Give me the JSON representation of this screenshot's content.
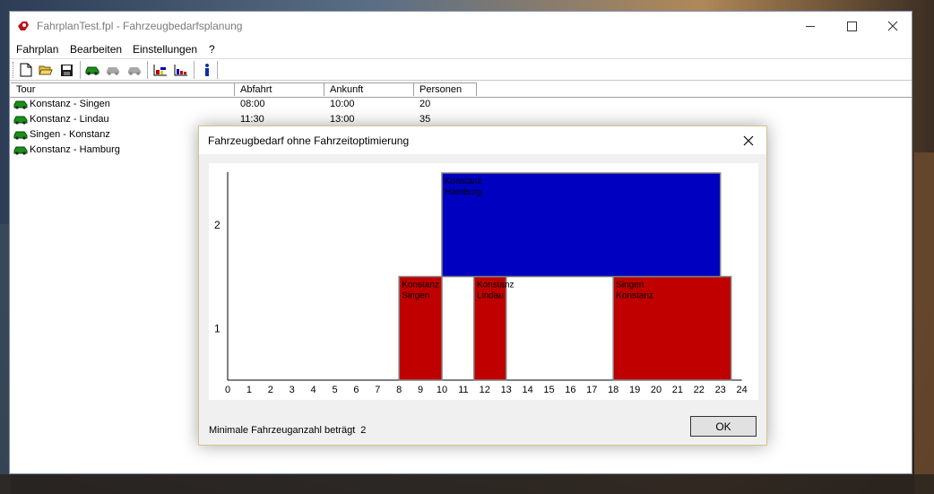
{
  "window": {
    "title": "FahrplanTest.fpl - Fahrzeugbedarfsplanung"
  },
  "menu": {
    "items": [
      "Fahrplan",
      "Bearbeiten",
      "Einstellungen",
      "?"
    ]
  },
  "toolbar": {
    "icons": [
      "new-document-icon",
      "open-folder-icon",
      "save-disk-icon",
      "car-icon",
      "car-disabled-icon",
      "car-disabled-icon",
      "chart-icon",
      "bar-chart-icon",
      "info-icon"
    ]
  },
  "table": {
    "columns": [
      "Tour",
      "Abfahrt",
      "Ankunft",
      "Personen"
    ],
    "rows": [
      {
        "tour": "Konstanz - Singen",
        "abfahrt": "08:00",
        "ankunft": "10:00",
        "personen": "20"
      },
      {
        "tour": "Konstanz - Lindau",
        "abfahrt": "11:30",
        "ankunft": "13:00",
        "personen": "35"
      },
      {
        "tour": "Singen - Konstanz",
        "abfahrt": "",
        "ankunft": "",
        "personen": ""
      },
      {
        "tour": "Konstanz - Hamburg",
        "abfahrt": "",
        "ankunft": "",
        "personen": ""
      }
    ]
  },
  "dialog": {
    "title": "Fahrzeugbedarf ohne Fahrzeitoptimierung",
    "status_label": "Minimale Fahrzeuganzahl beträgt",
    "status_value": "2",
    "ok_label": "OK"
  },
  "chart_data": {
    "type": "bar",
    "title": "",
    "xlabel": "",
    "ylabel": "",
    "xlim": [
      0,
      24
    ],
    "x_ticks": [
      0,
      1,
      2,
      3,
      4,
      5,
      6,
      7,
      8,
      9,
      10,
      11,
      12,
      13,
      14,
      15,
      16,
      17,
      18,
      19,
      20,
      21,
      22,
      23,
      24
    ],
    "y_ticks": [
      1,
      2
    ],
    "grid": false,
    "colors": {
      "level1": "#c00000",
      "level2": "#0000c0"
    },
    "bars": [
      {
        "vehicle": 1,
        "start": 8.0,
        "end": 10.0,
        "label_line1": "Konstanz",
        "label_line2": "Singen"
      },
      {
        "vehicle": 1,
        "start": 11.5,
        "end": 13.0,
        "label_line1": "Konstanz",
        "label_line2": "Lindau"
      },
      {
        "vehicle": 1,
        "start": 18.0,
        "end": 23.5,
        "label_line1": "Singen",
        "label_line2": "Konstanz"
      },
      {
        "vehicle": 2,
        "start": 10.0,
        "end": 23.0,
        "label_line1": "Konstanz",
        "label_line2": "Hamburg"
      }
    ]
  }
}
